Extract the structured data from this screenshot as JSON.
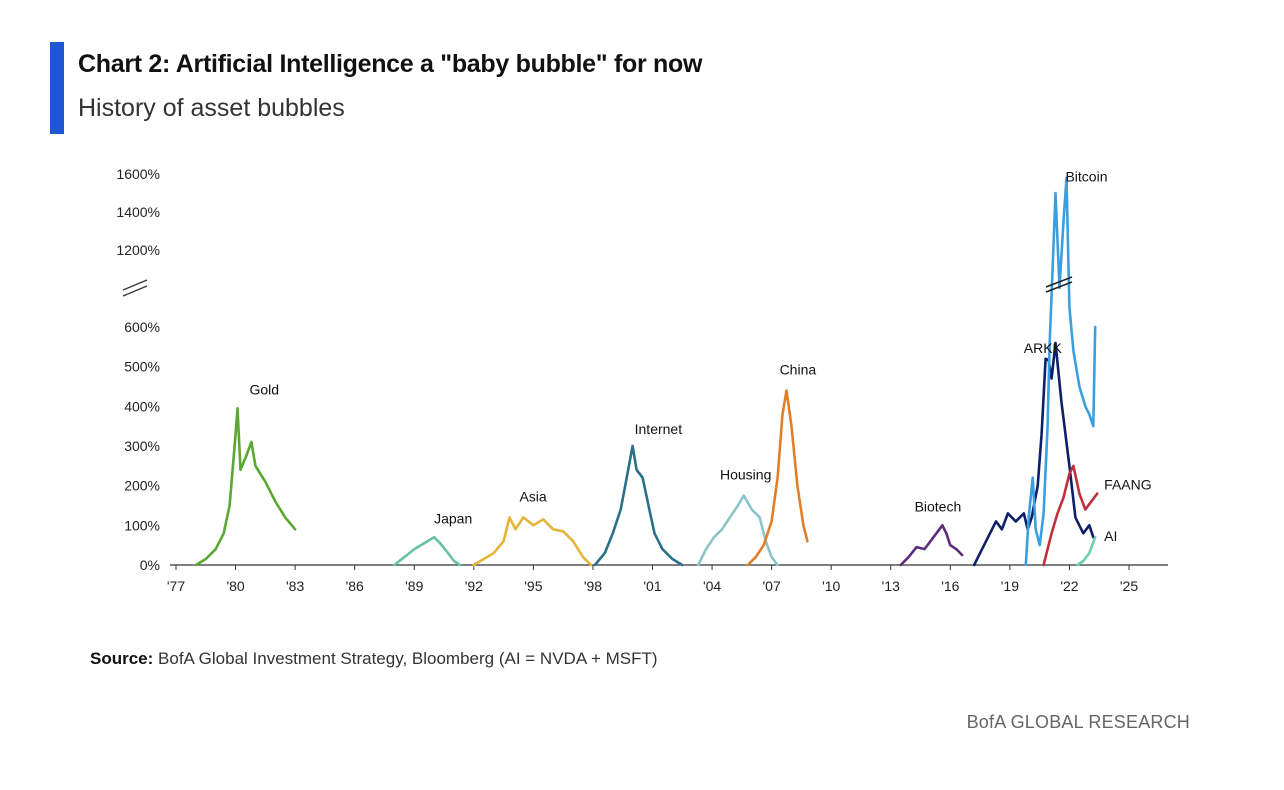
{
  "header": {
    "title": "Chart 2: Artificial Intelligence a \"baby bubble\" for now",
    "subtitle": "History of asset bubbles"
  },
  "footer": {
    "source_label": "Source:",
    "source_text": "BofA Global Investment Strategy, Bloomberg (AI = NVDA + MSFT)",
    "brand": "BofA GLOBAL RESEARCH"
  },
  "colors": {
    "accent_bar": "#1f56d6"
  },
  "chart_data": {
    "type": "line",
    "title": "Chart 2: Artificial Intelligence a \"baby bubble\" for now",
    "subtitle": "History of asset bubbles",
    "xlabel": "",
    "ylabel": "",
    "xlim": [
      1977,
      2025.5
    ],
    "x_ticks": [
      "'77",
      "'80",
      "'83",
      "'86",
      "'89",
      "'92",
      "'95",
      "'98",
      "'01",
      "'04",
      "'07",
      "'10",
      "'13",
      "'16",
      "'19",
      "'22",
      "'25"
    ],
    "y_ticks_lower": [
      "0%",
      "100%",
      "200%",
      "300%",
      "400%",
      "500%",
      "600%"
    ],
    "y_ticks_upper": [
      "1200%",
      "1400%",
      "1600%"
    ],
    "y_axis_break": true,
    "grid": false,
    "legend": "none (series labeled directly)",
    "series": [
      {
        "name": "Gold",
        "color": "#5aa832",
        "label_at": [
          1980.7,
          430
        ],
        "points": [
          [
            1978.0,
            0
          ],
          [
            1978.5,
            15
          ],
          [
            1979.0,
            40
          ],
          [
            1979.4,
            80
          ],
          [
            1979.7,
            150
          ],
          [
            1980.0,
            330
          ],
          [
            1980.1,
            395
          ],
          [
            1980.25,
            240
          ],
          [
            1980.5,
            270
          ],
          [
            1980.8,
            310
          ],
          [
            1981.0,
            250
          ],
          [
            1981.5,
            210
          ],
          [
            1982.0,
            160
          ],
          [
            1982.5,
            120
          ],
          [
            1983.0,
            90
          ]
        ]
      },
      {
        "name": "Japan",
        "color": "#66c2a5",
        "label_at": [
          1990.0,
          105
        ],
        "points": [
          [
            1988.0,
            0
          ],
          [
            1988.5,
            20
          ],
          [
            1989.0,
            40
          ],
          [
            1989.5,
            55
          ],
          [
            1990.0,
            70
          ],
          [
            1990.3,
            55
          ],
          [
            1990.7,
            30
          ],
          [
            1991.0,
            10
          ],
          [
            1991.3,
            0
          ]
        ]
      },
      {
        "name": "Asia",
        "color": "#e5b53a",
        "label_at": [
          1994.3,
          160
        ],
        "points": [
          [
            1992.0,
            0
          ],
          [
            1992.5,
            15
          ],
          [
            1993.0,
            30
          ],
          [
            1993.5,
            60
          ],
          [
            1993.8,
            120
          ],
          [
            1994.1,
            90
          ],
          [
            1994.5,
            120
          ],
          [
            1995.0,
            100
          ],
          [
            1995.5,
            115
          ],
          [
            1996.0,
            90
          ],
          [
            1996.5,
            85
          ],
          [
            1997.0,
            60
          ],
          [
            1997.5,
            20
          ],
          [
            1997.9,
            0
          ]
        ]
      },
      {
        "name": "Internet",
        "color": "#2a7089",
        "label_at": [
          2000.1,
          330
        ],
        "points": [
          [
            1998.1,
            0
          ],
          [
            1998.6,
            30
          ],
          [
            1999.0,
            80
          ],
          [
            1999.4,
            140
          ],
          [
            1999.7,
            220
          ],
          [
            2000.0,
            300
          ],
          [
            2000.2,
            240
          ],
          [
            2000.5,
            220
          ],
          [
            2000.8,
            150
          ],
          [
            2001.1,
            80
          ],
          [
            2001.5,
            40
          ],
          [
            2002.0,
            15
          ],
          [
            2002.5,
            0
          ]
        ]
      },
      {
        "name": "Housing",
        "color": "#8cc3c8",
        "label_at": [
          2004.4,
          215
        ],
        "points": [
          [
            2003.3,
            0
          ],
          [
            2003.7,
            40
          ],
          [
            2004.1,
            70
          ],
          [
            2004.5,
            90
          ],
          [
            2004.9,
            120
          ],
          [
            2005.3,
            150
          ],
          [
            2005.6,
            175
          ],
          [
            2006.0,
            140
          ],
          [
            2006.4,
            120
          ],
          [
            2006.7,
            60
          ],
          [
            2007.0,
            20
          ],
          [
            2007.3,
            0
          ]
        ]
      },
      {
        "name": "China",
        "color": "#e07f2a",
        "label_at": [
          2007.4,
          480
        ],
        "points": [
          [
            2005.8,
            0
          ],
          [
            2006.2,
            20
          ],
          [
            2006.6,
            50
          ],
          [
            2007.0,
            110
          ],
          [
            2007.3,
            220
          ],
          [
            2007.55,
            380
          ],
          [
            2007.75,
            440
          ],
          [
            2008.0,
            350
          ],
          [
            2008.3,
            200
          ],
          [
            2008.6,
            100
          ],
          [
            2008.8,
            60
          ]
        ]
      },
      {
        "name": "Biotech",
        "color": "#5e2d7a",
        "label_at": [
          2014.2,
          135
        ],
        "points": [
          [
            2013.5,
            0
          ],
          [
            2013.9,
            20
          ],
          [
            2014.3,
            45
          ],
          [
            2014.7,
            40
          ],
          [
            2015.0,
            60
          ],
          [
            2015.3,
            80
          ],
          [
            2015.6,
            100
          ],
          [
            2015.8,
            80
          ],
          [
            2016.0,
            50
          ],
          [
            2016.3,
            40
          ],
          [
            2016.6,
            25
          ]
        ]
      },
      {
        "name": "ARKK",
        "color": "#0d1f6b",
        "label_at": [
          2019.7,
          535
        ],
        "points": [
          [
            2017.2,
            0
          ],
          [
            2017.6,
            40
          ],
          [
            2018.0,
            80
          ],
          [
            2018.3,
            110
          ],
          [
            2018.6,
            90
          ],
          [
            2018.9,
            130
          ],
          [
            2019.3,
            110
          ],
          [
            2019.7,
            130
          ],
          [
            2019.9,
            90
          ],
          [
            2020.1,
            120
          ],
          [
            2020.4,
            200
          ],
          [
            2020.6,
            330
          ],
          [
            2020.8,
            520
          ],
          [
            2020.95,
            620
          ],
          [
            2021.1,
            470
          ],
          [
            2021.3,
            560
          ],
          [
            2021.6,
            410
          ],
          [
            2022.0,
            250
          ],
          [
            2022.3,
            120
          ],
          [
            2022.7,
            80
          ],
          [
            2023.0,
            100
          ],
          [
            2023.2,
            70
          ]
        ]
      },
      {
        "name": "Bitcoin",
        "color": "#3a9fde",
        "label_at": [
          2021.8,
          1560
        ],
        "points": [
          [
            2019.8,
            0
          ],
          [
            2019.95,
            120
          ],
          [
            2020.15,
            220
          ],
          [
            2020.3,
            90
          ],
          [
            2020.5,
            50
          ],
          [
            2020.7,
            130
          ],
          [
            2020.9,
            350
          ],
          [
            2021.0,
            700
          ],
          [
            2021.15,
            1100
          ],
          [
            2021.3,
            1500
          ],
          [
            2021.5,
            1000
          ],
          [
            2021.7,
            1350
          ],
          [
            2021.85,
            1580
          ],
          [
            2022.0,
            900
          ],
          [
            2022.2,
            540
          ],
          [
            2022.5,
            450
          ],
          [
            2022.8,
            400
          ],
          [
            2023.0,
            380
          ],
          [
            2023.2,
            350
          ],
          [
            2023.3,
            600
          ]
        ]
      },
      {
        "name": "FAANG",
        "color": "#c0303c",
        "label_at": [
          2023.75,
          190
        ],
        "points": [
          [
            2020.7,
            0
          ],
          [
            2020.9,
            40
          ],
          [
            2021.1,
            80
          ],
          [
            2021.4,
            130
          ],
          [
            2021.7,
            170
          ],
          [
            2022.0,
            230
          ],
          [
            2022.2,
            250
          ],
          [
            2022.5,
            180
          ],
          [
            2022.8,
            140
          ],
          [
            2023.1,
            160
          ],
          [
            2023.4,
            180
          ]
        ]
      },
      {
        "name": "AI",
        "color": "#6ccfae",
        "label_at": [
          2023.75,
          60
        ],
        "points": [
          [
            2022.4,
            0
          ],
          [
            2022.7,
            10
          ],
          [
            2023.0,
            30
          ],
          [
            2023.3,
            70
          ]
        ]
      }
    ]
  }
}
